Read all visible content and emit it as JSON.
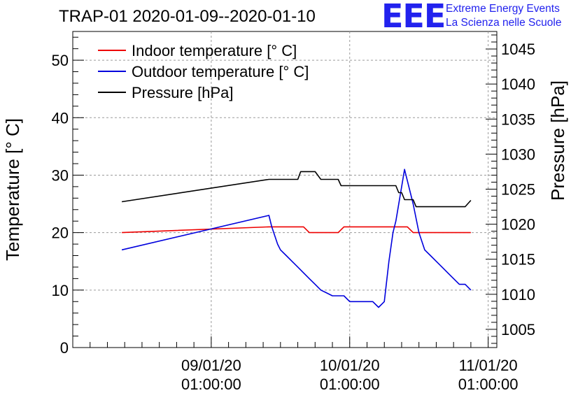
{
  "title": "TRAP-01 2020-01-09--2020-01-10",
  "logo": {
    "mark": "EEE",
    "line1": "Extreme Energy Events",
    "line2": "La Scienza nelle Scuole"
  },
  "chart_data": {
    "type": "line",
    "xlabel": "",
    "ylabel": "Temperature [° C]",
    "y2label": "Pressure [hPa]",
    "ylim": [
      0,
      55
    ],
    "y2lim": [
      1002.4,
      1047.5
    ],
    "yticks": [
      0,
      10,
      20,
      30,
      40,
      50
    ],
    "y2ticks": [
      1005,
      1010,
      1015,
      1020,
      1025,
      1030,
      1035,
      1040,
      1045
    ],
    "grid": true,
    "legend": "top-left",
    "xticks": [
      {
        "x": 24,
        "date": "09/01/20",
        "time": "01:00:00"
      },
      {
        "x": 48,
        "date": "10/01/20",
        "time": "01:00:00"
      },
      {
        "x": 72,
        "date": "11/01/20",
        "time": "01:00:00"
      }
    ],
    "xlim": [
      0,
      73.5
    ],
    "series": [
      {
        "name": "Indoor temperature [° C]",
        "axis": "left",
        "color": "#ee0000",
        "x": [
          8.5,
          34,
          35,
          40,
          41,
          46,
          47,
          54,
          55,
          58,
          59,
          66,
          69
        ],
        "y": [
          20,
          21,
          21,
          21,
          20,
          20,
          21,
          21,
          21,
          21,
          20,
          20,
          20
        ]
      },
      {
        "name": "Outdoor temperature [° C]",
        "axis": "left",
        "color": "#0000dd",
        "x": [
          8.5,
          34,
          34.5,
          35.5,
          36,
          37,
          38,
          39,
          40,
          41,
          42,
          43,
          44,
          45,
          46,
          47,
          48,
          49,
          50,
          51,
          52,
          53,
          53.5,
          54,
          54.8,
          55.5,
          56,
          57,
          57.5,
          58,
          59,
          60,
          61,
          62,
          63,
          64,
          65,
          66,
          67,
          68,
          69
        ],
        "y": [
          17,
          23,
          21,
          18,
          17,
          16,
          15,
          14,
          13,
          12,
          11,
          10,
          9.5,
          9,
          9,
          9,
          8,
          8,
          8,
          8,
          8,
          7,
          7.5,
          8,
          15,
          20,
          22,
          28,
          31,
          29,
          25,
          20,
          17,
          16,
          15,
          14,
          13,
          12,
          11,
          11,
          10
        ]
      },
      {
        "name": "Pressure [hPa]",
        "axis": "right",
        "color": "#000000",
        "x": [
          8.5,
          34,
          35,
          37,
          38,
          39,
          39.5,
          41,
          42,
          43,
          45,
          46,
          46.5,
          52,
          53,
          54,
          55,
          55.5,
          56,
          56.5,
          57,
          57.5,
          59,
          59.5,
          60,
          66,
          67,
          68,
          69
        ],
        "y": [
          1023.2,
          1026.4,
          1026.4,
          1026.4,
          1026.4,
          1026.4,
          1027.5,
          1027.5,
          1027.5,
          1026.4,
          1026.4,
          1026.4,
          1025.5,
          1025.5,
          1025.5,
          1025.5,
          1025.5,
          1025.5,
          1025.5,
          1024.5,
          1024.5,
          1023.5,
          1023.5,
          1022.5,
          1022.5,
          1022.5,
          1022.5,
          1022.5,
          1023.4
        ]
      }
    ]
  }
}
